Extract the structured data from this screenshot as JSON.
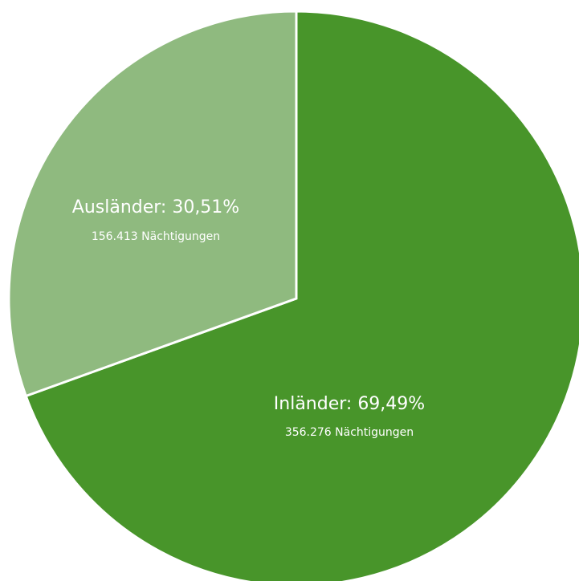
{
  "chart_data": {
    "type": "pie",
    "start_angle_deg": 0,
    "direction": "clockwise",
    "slices": [
      {
        "label": "Inländer: 69,49%",
        "sublabel": "356.276 Nächtigungen",
        "percent": 69.49,
        "value": 356276,
        "color": "#48952a"
      },
      {
        "label": "Ausländer: 30,51%",
        "sublabel": "156.413 Nächtigungen",
        "percent": 30.51,
        "value": 156413,
        "color": "#8fba7f"
      }
    ],
    "legend": "none"
  }
}
